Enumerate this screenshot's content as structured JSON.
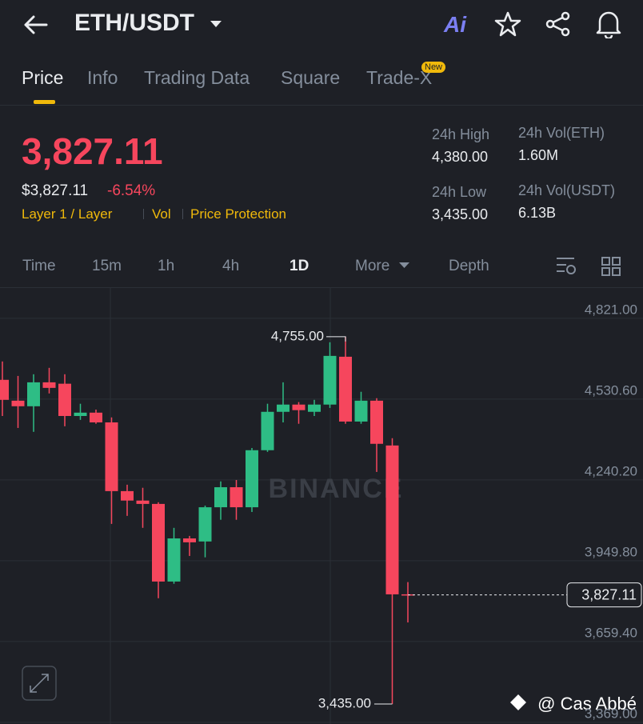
{
  "header": {
    "pair": "ETH/USDT",
    "ai": "Ai"
  },
  "tabs": [
    "Price",
    "Info",
    "Trading Data",
    "Square",
    "Trade-X"
  ],
  "tab_badge": "New",
  "ticker": {
    "price": "3,827.11",
    "price_usd": "$3,827.11",
    "change": "-6.54%",
    "tags": [
      "Layer 1 / Layer",
      "Vol",
      "Price Protection"
    ],
    "stats": [
      {
        "label": "24h High",
        "value": "4,380.00"
      },
      {
        "label": "24h Vol(ETH)",
        "value": "1.60M"
      },
      {
        "label": "24h Low",
        "value": "3,435.00"
      },
      {
        "label": "24h Vol(USDT)",
        "value": "6.13B"
      }
    ]
  },
  "intervals": [
    "Time",
    "15m",
    "1h",
    "4h",
    "1D",
    "More",
    "Depth"
  ],
  "chart_data": {
    "type": "candlestick",
    "open": [
      4600,
      4525,
      4505,
      4591,
      4586,
      4470,
      4482,
      4447,
      4200,
      4166,
      4154,
      3875,
      4030,
      4019,
      4142,
      4214,
      4142,
      4347,
      4485,
      4511,
      4485,
      4511,
      4683,
      4450,
      4525,
      4364,
      3829
    ],
    "high": [
      4666,
      4614,
      4620,
      4643,
      4620,
      4514,
      4493,
      4465,
      4223,
      4212,
      4160,
      4068,
      4039,
      4148,
      4235,
      4240,
      4355,
      4514,
      4591,
      4520,
      4528,
      4735,
      4755,
      4557,
      4534,
      4390,
      3873
    ],
    "low": [
      4470,
      4427,
      4413,
      4551,
      4433,
      4456,
      4442,
      4082,
      4111,
      4068,
      3815,
      3867,
      3967,
      3962,
      4097,
      4097,
      4125,
      4341,
      4447,
      4442,
      4470,
      4499,
      4442,
      4442,
      4269,
      3435,
      3728
    ],
    "close": [
      4528,
      4505,
      4591,
      4571,
      4470,
      4482,
      4447,
      4200,
      4166,
      4154,
      3875,
      4030,
      4016,
      4142,
      4214,
      4142,
      4347,
      4485,
      4511,
      4491,
      4511,
      4686,
      4450,
      4525,
      4370,
      3829,
      3827.11
    ],
    "up_color": "#2ebd85",
    "down_color": "#f6465d",
    "ylim": [
      3363,
      4930
    ],
    "yticks": [
      {
        "value": 4821,
        "label": "4,821.00"
      },
      {
        "value": 4530.6,
        "label": "4,530.60"
      },
      {
        "value": 4240.2,
        "label": "4,240.20"
      },
      {
        "value": 3949.8,
        "label": "3,949.80"
      },
      {
        "value": 3659.4,
        "label": "3,659.40"
      },
      {
        "value": 3369,
        "label": "3,369.00"
      }
    ],
    "grid": true,
    "high_label": "4,755.00",
    "low_label": "3,435.00",
    "last_label": "3,827.11",
    "watermark": "BINANCE"
  },
  "footer": {
    "credit": "@ Cas Abbé"
  }
}
